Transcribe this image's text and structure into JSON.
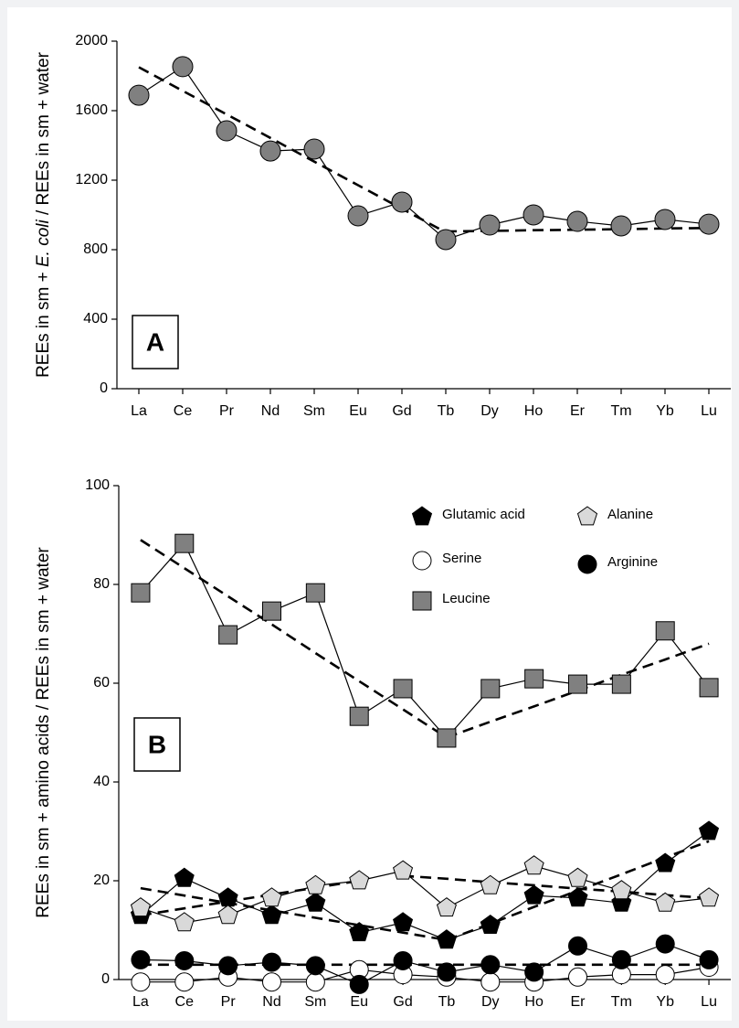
{
  "chart_data": [
    {
      "type": "line",
      "label": "A",
      "ylabel": [
        "REEs in sm + ",
        "E. coli",
        " / REEs in sm + water"
      ],
      "categories": [
        "La",
        "Ce",
        "Pr",
        "Nd",
        "Sm",
        "Eu",
        "Gd",
        "Tb",
        "Dy",
        "Ho",
        "Er",
        "Tm",
        "Yb",
        "Lu"
      ],
      "ylim": [
        0,
        2000
      ],
      "yticks": [
        0,
        400,
        800,
        1200,
        1600,
        2000
      ],
      "series": [
        {
          "color": "#808080",
          "marker": "circle",
          "values": [
            1689,
            1853,
            1484,
            1368,
            1379,
            995,
            1074,
            858,
            942,
            1000,
            963,
            937,
            974,
            947
          ]
        }
      ],
      "trends": [
        {
          "values": [
            1850,
            1714,
            1579,
            1443,
            1307,
            1171,
            1036,
            900,
            null,
            null,
            null,
            null,
            null,
            null
          ]
        },
        {
          "values": [
            null,
            null,
            null,
            null,
            null,
            null,
            null,
            905,
            908,
            912,
            915,
            918,
            922,
            925
          ]
        }
      ]
    },
    {
      "type": "line",
      "label": "B",
      "ylabel": [
        "REEs in sm + amino acids / REEs in sm + water"
      ],
      "categories": [
        "La",
        "Ce",
        "Pr",
        "Nd",
        "Sm",
        "Eu",
        "Gd",
        "Tb",
        "Dy",
        "Ho",
        "Er",
        "Tm",
        "Yb",
        "Lu"
      ],
      "ylim": [
        0,
        100
      ],
      "yticks": [
        0,
        20,
        40,
        60,
        80,
        100
      ],
      "series": [
        {
          "name": "Glutamic acid",
          "color": "#000000",
          "marker": "pentagon",
          "values": [
            13,
            20.5,
            16.5,
            13,
            15.5,
            9.5,
            11.5,
            8,
            11,
            17,
            16.5,
            15.5,
            23.5,
            30
          ]
        },
        {
          "name": "Alanine",
          "color": "#d9d9d9",
          "marker": "pentagon",
          "values": [
            14.5,
            11.5,
            13,
            16.5,
            19,
            20,
            22,
            14.5,
            19,
            23,
            20.5,
            18,
            15.5,
            16.5
          ]
        },
        {
          "name": "Serine",
          "color": "#ffffff",
          "marker": "circle",
          "values": [
            -0.5,
            -0.5,
            0.5,
            -0.5,
            -0.5,
            2,
            1,
            0.5,
            -0.5,
            -0.5,
            0.5,
            1,
            1,
            2.5
          ]
        },
        {
          "name": "Arginine",
          "color": "#000000",
          "marker": "circle",
          "values": [
            4,
            3.8,
            2.8,
            3.5,
            2.8,
            -1,
            3.8,
            1.5,
            3,
            1.5,
            6.8,
            4,
            7.2,
            4
          ]
        },
        {
          "name": "Leucine",
          "color": "#808080",
          "marker": "square",
          "values": [
            78.3,
            88.3,
            69.8,
            74.6,
            78.3,
            53.3,
            58.9,
            48.9,
            58.9,
            60.9,
            59.8,
            59.8,
            70.6,
            59.1
          ]
        }
      ],
      "trends": [
        {
          "values": [
            89,
            83.3,
            77.6,
            71.9,
            66.1,
            60.4,
            54.7,
            49,
            null,
            null,
            null,
            null,
            null,
            null
          ]
        },
        {
          "values": [
            null,
            null,
            null,
            null,
            null,
            null,
            null,
            49,
            52.2,
            55.3,
            58.5,
            61.7,
            64.8,
            68
          ]
        },
        {
          "values": [
            18.5,
            17,
            15.5,
            14,
            12.5,
            11,
            9.5,
            8,
            null,
            null,
            null,
            null,
            null,
            null
          ]
        },
        {
          "values": [
            null,
            null,
            null,
            null,
            null,
            null,
            null,
            8,
            11.3,
            14.7,
            18,
            21.3,
            24.7,
            28
          ]
        },
        {
          "values": [
            13,
            14.4,
            15.8,
            17.2,
            18.6,
            20,
            null,
            null,
            null,
            null,
            null,
            null,
            null,
            null
          ]
        },
        {
          "values": [
            null,
            null,
            null,
            null,
            null,
            null,
            21,
            20.4,
            19.7,
            19.1,
            18.4,
            17.8,
            17.1,
            16.5
          ]
        },
        {
          "values": [
            3,
            3,
            3,
            3,
            3,
            3,
            3,
            3,
            3,
            3,
            3,
            3,
            3,
            3
          ]
        }
      ]
    }
  ]
}
